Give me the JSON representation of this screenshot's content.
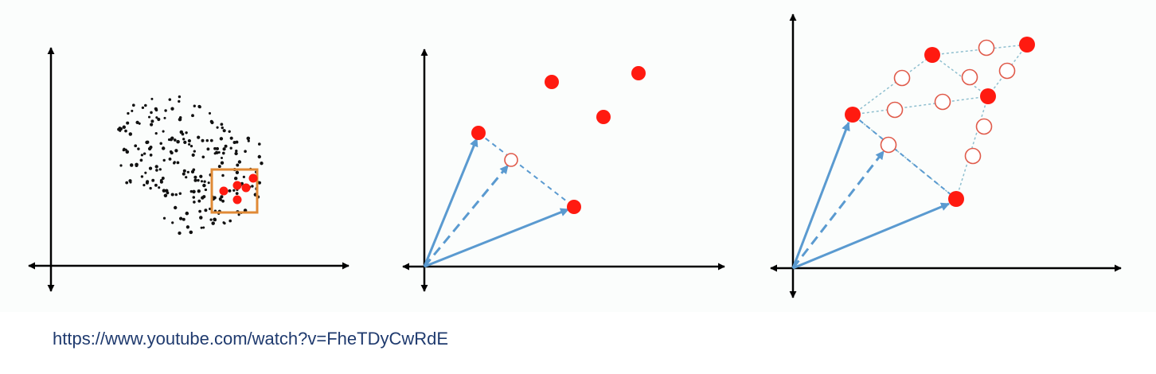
{
  "source": {
    "url": "https://www.youtube.com/watch?v=FheTDyCwRdE"
  },
  "colors": {
    "background": "#fbfdfc",
    "axis": "#000000",
    "scatter": "#111111",
    "minority": "#ff1a10",
    "window": "#e08a36",
    "vector": "#5a9ad0",
    "synthetic_outline": "#e05a4a",
    "link": "#1f3a6e"
  },
  "panels": [
    {
      "id": "panel-1",
      "content": "majority scatter with minority samples inside a neighbourhood box"
    },
    {
      "id": "panel-2",
      "content": "one synthetic point interpolated between two minority points"
    },
    {
      "id": "panel-3",
      "content": "many synthetic points interpolated between minority neighbours"
    }
  ]
}
